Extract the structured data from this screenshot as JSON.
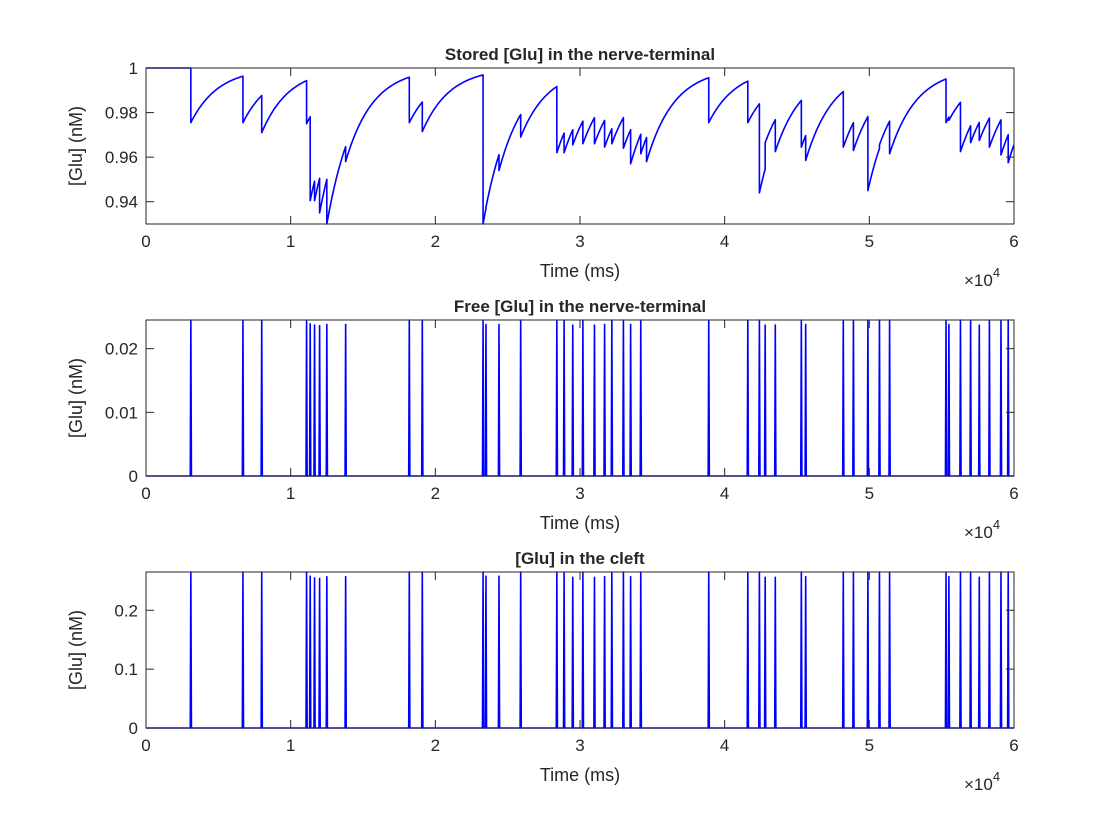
{
  "chart_data": [
    {
      "type": "line",
      "title": "Stored [Glu] in the nerve-terminal",
      "xlabel": "Time (ms)",
      "ylabel": "[Glu] (nM)",
      "xlim": [
        0,
        60000
      ],
      "ylim": [
        0.93,
        1.0
      ],
      "xticks": [
        0,
        10000,
        20000,
        30000,
        40000,
        50000,
        60000
      ],
      "xtick_labels": [
        "0",
        "1",
        "2",
        "3",
        "4",
        "5",
        "6"
      ],
      "x_exponent_prefix": "×10",
      "x_exponent": "4",
      "yticks": [
        0.94,
        0.96,
        0.98,
        1.0
      ],
      "ytick_labels": [
        "0.94",
        "0.96",
        "0.98",
        "1"
      ],
      "color": "#0000ff",
      "baseline": 1.0,
      "recovery_tau": 1900,
      "events": [
        [
          3100,
          0.9755
        ],
        [
          6700,
          0.9755
        ],
        [
          8000,
          0.971
        ],
        [
          11100,
          0.975
        ],
        [
          11350,
          0.9405
        ],
        [
          11650,
          0.9405
        ],
        [
          12000,
          0.935
        ],
        [
          12500,
          0.93
        ],
        [
          13800,
          0.958
        ],
        [
          18200,
          0.9755
        ],
        [
          19100,
          0.9715
        ],
        [
          23300,
          0.93
        ],
        [
          23500,
          0.9375
        ],
        [
          24400,
          0.954
        ],
        [
          25900,
          0.969
        ],
        [
          28400,
          0.962
        ],
        [
          28900,
          0.962
        ],
        [
          29500,
          0.9655
        ],
        [
          30200,
          0.966
        ],
        [
          31000,
          0.966
        ],
        [
          31700,
          0.9645
        ],
        [
          32200,
          0.966
        ],
        [
          33000,
          0.964
        ],
        [
          33500,
          0.957
        ],
        [
          34200,
          0.9615
        ],
        [
          34600,
          0.958
        ],
        [
          38900,
          0.9755
        ],
        [
          41600,
          0.9755
        ],
        [
          42400,
          0.944
        ],
        [
          42800,
          0.9665
        ],
        [
          43500,
          0.9625
        ],
        [
          45300,
          0.9645
        ],
        [
          45600,
          0.9585
        ],
        [
          48200,
          0.9645
        ],
        [
          48900,
          0.963
        ],
        [
          49900,
          0.945
        ],
        [
          50700,
          0.9655
        ],
        [
          51400,
          0.9615
        ],
        [
          55300,
          0.9755
        ],
        [
          55500,
          0.9765
        ],
        [
          56300,
          0.9625
        ],
        [
          57000,
          0.9665
        ],
        [
          57600,
          0.9675
        ],
        [
          58300,
          0.9645
        ],
        [
          59100,
          0.961
        ],
        [
          59600,
          0.9575
        ]
      ]
    },
    {
      "type": "line",
      "title": "Free [Glu] in the nerve-terminal",
      "xlabel": "Time (ms)",
      "ylabel": "[Glu] (nM)",
      "xlim": [
        0,
        60000
      ],
      "ylim": [
        0,
        0.0245
      ],
      "xticks": [
        0,
        10000,
        20000,
        30000,
        40000,
        50000,
        60000
      ],
      "xtick_labels": [
        "0",
        "1",
        "2",
        "3",
        "4",
        "5",
        "6"
      ],
      "x_exponent_prefix": "×10",
      "x_exponent": "4",
      "yticks": [
        0,
        0.01,
        0.02
      ],
      "ytick_labels": [
        "0",
        "0.01",
        "0.02"
      ],
      "color": "#0000ff",
      "spikes": [
        [
          3100,
          0.0245
        ],
        [
          6700,
          0.0245
        ],
        [
          8000,
          0.0245
        ],
        [
          11100,
          0.0245
        ],
        [
          11350,
          0.0239
        ],
        [
          11650,
          0.0237
        ],
        [
          12000,
          0.0236
        ],
        [
          12500,
          0.0238
        ],
        [
          13800,
          0.0238
        ],
        [
          18200,
          0.0245
        ],
        [
          19100,
          0.0245
        ],
        [
          23300,
          0.0245
        ],
        [
          23500,
          0.0238
        ],
        [
          24400,
          0.0238
        ],
        [
          25900,
          0.0245
        ],
        [
          28400,
          0.0245
        ],
        [
          28900,
          0.0245
        ],
        [
          29500,
          0.0237
        ],
        [
          30200,
          0.0245
        ],
        [
          31000,
          0.0237
        ],
        [
          31700,
          0.0238
        ],
        [
          32200,
          0.0245
        ],
        [
          33000,
          0.0245
        ],
        [
          33500,
          0.0238
        ],
        [
          34200,
          0.0245
        ],
        [
          38900,
          0.0245
        ],
        [
          41600,
          0.0245
        ],
        [
          42400,
          0.0245
        ],
        [
          42800,
          0.0237
        ],
        [
          43500,
          0.0237
        ],
        [
          45300,
          0.0245
        ],
        [
          45600,
          0.0238
        ],
        [
          48200,
          0.0245
        ],
        [
          48900,
          0.0245
        ],
        [
          49900,
          0.0245
        ],
        [
          50700,
          0.0245
        ],
        [
          51400,
          0.0245
        ],
        [
          55300,
          0.0245
        ],
        [
          55500,
          0.0238
        ],
        [
          56300,
          0.0245
        ],
        [
          57000,
          0.0245
        ],
        [
          57600,
          0.0237
        ],
        [
          58300,
          0.0245
        ],
        [
          59100,
          0.0245
        ],
        [
          59600,
          0.0245
        ]
      ]
    },
    {
      "type": "line",
      "title": "[Glu] in the cleft",
      "xlabel": "Time (ms)",
      "ylabel": "[Glu] (nM)",
      "xlim": [
        0,
        60000
      ],
      "ylim": [
        0,
        0.265
      ],
      "xticks": [
        0,
        10000,
        20000,
        30000,
        40000,
        50000,
        60000
      ],
      "xtick_labels": [
        "0",
        "1",
        "2",
        "3",
        "4",
        "5",
        "6"
      ],
      "x_exponent_prefix": "×10",
      "x_exponent": "4",
      "yticks": [
        0,
        0.1,
        0.2
      ],
      "ytick_labels": [
        "0",
        "0.1",
        "0.2"
      ],
      "color": "#0000ff",
      "spikes": [
        [
          3100,
          0.265
        ],
        [
          6700,
          0.265
        ],
        [
          8000,
          0.265
        ],
        [
          11100,
          0.265
        ],
        [
          11350,
          0.258
        ],
        [
          11650,
          0.255
        ],
        [
          12000,
          0.254
        ],
        [
          12500,
          0.257
        ],
        [
          13800,
          0.257
        ],
        [
          18200,
          0.265
        ],
        [
          19100,
          0.265
        ],
        [
          23300,
          0.265
        ],
        [
          23500,
          0.258
        ],
        [
          24400,
          0.258
        ],
        [
          25900,
          0.265
        ],
        [
          28400,
          0.265
        ],
        [
          28900,
          0.265
        ],
        [
          29500,
          0.256
        ],
        [
          30200,
          0.265
        ],
        [
          31000,
          0.256
        ],
        [
          31700,
          0.257
        ],
        [
          32200,
          0.265
        ],
        [
          33000,
          0.265
        ],
        [
          33500,
          0.257
        ],
        [
          34200,
          0.265
        ],
        [
          38900,
          0.265
        ],
        [
          41600,
          0.265
        ],
        [
          42400,
          0.265
        ],
        [
          42800,
          0.256
        ],
        [
          43500,
          0.256
        ],
        [
          45300,
          0.265
        ],
        [
          45600,
          0.257
        ],
        [
          48200,
          0.265
        ],
        [
          48900,
          0.265
        ],
        [
          49900,
          0.265
        ],
        [
          50700,
          0.265
        ],
        [
          51400,
          0.265
        ],
        [
          55300,
          0.265
        ],
        [
          55500,
          0.257
        ],
        [
          56300,
          0.265
        ],
        [
          57000,
          0.265
        ],
        [
          57600,
          0.256
        ],
        [
          58300,
          0.265
        ],
        [
          59100,
          0.265
        ],
        [
          59600,
          0.265
        ]
      ]
    }
  ]
}
